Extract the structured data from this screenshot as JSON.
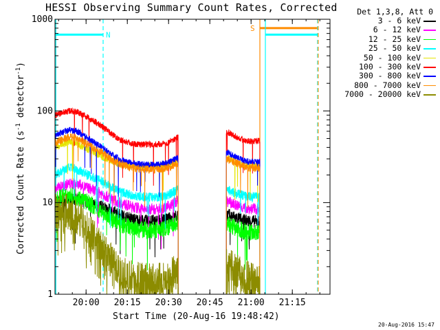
{
  "title": "HESSI Observing Summary Count Rates, Corrected",
  "footer_stamp": "20-Aug-2016 15:47",
  "chart_data": {
    "type": "line",
    "title": "HESSI Observing Summary Count Rates, Corrected",
    "xlabel": "Start Time (20-Aug-16 19:48:42)",
    "ylabel": {
      "main": "Corrected Count Rate (s",
      "sup1": "-1",
      "mid": " detector",
      "sup2": "-1",
      "end": ")"
    },
    "xlim": [
      "19:48:42",
      "21:28:42"
    ],
    "ylim": [
      1,
      1000
    ],
    "yscale": "log",
    "grid": false,
    "legend_placement": "right",
    "legend_title": "Det 1,3,8, Att 0",
    "x_ticks": [
      "20:00",
      "20:15",
      "20:30",
      "20:45",
      "21:00",
      "21:15"
    ],
    "x_tick_minutes": [
      11.3,
      26.3,
      41.3,
      56.3,
      71.3,
      86.3
    ],
    "y_ticks": [
      1,
      10,
      100,
      1000
    ],
    "y_tick_labels": [
      "1",
      "10",
      "100",
      "1000"
    ],
    "data_gap_minutes": [
      44.8,
      62.3
    ],
    "series": [
      {
        "name": "3 - 6 keV",
        "color": "#000000",
        "x": [
          0,
          5,
          8,
          12,
          17,
          21,
          24,
          28,
          32,
          37,
          41,
          44.8,
          62.3,
          66,
          70,
          74.5
        ],
        "y": [
          10,
          10.8,
          10.8,
          10,
          9,
          8,
          7.2,
          6.6,
          6.3,
          6.3,
          6.6,
          7.2,
          7.5,
          6.8,
          6.3,
          6.2
        ]
      },
      {
        "name": "6 - 12 keV",
        "color": "#ff00ff",
        "x": [
          0,
          5,
          8,
          12,
          17,
          21,
          24,
          28,
          32,
          37,
          41,
          44.8,
          62.3,
          66,
          70,
          74.5
        ],
        "y": [
          14,
          16,
          16,
          14.5,
          12.5,
          10.8,
          9.8,
          9,
          8.5,
          8.5,
          9,
          10.5,
          10.5,
          9.3,
          8.6,
          8.5
        ]
      },
      {
        "name": "12 - 25 keV",
        "color": "#00ff00",
        "x": [
          0,
          5,
          8,
          12,
          17,
          21,
          24,
          28,
          32,
          37,
          41,
          44.8,
          62.3,
          66,
          70,
          74.5
        ],
        "y": [
          11,
          12,
          11.5,
          10,
          8,
          6.5,
          5.8,
          5.3,
          5,
          5,
          5.3,
          6,
          5.8,
          5.2,
          4.8,
          4.7
        ]
      },
      {
        "name": "25 - 50 keV",
        "color": "#00ffff",
        "x": [
          0,
          5,
          8,
          12,
          17,
          21,
          24,
          28,
          32,
          37,
          41,
          44.8,
          62.3,
          66,
          70,
          74.5
        ],
        "y": [
          20,
          24,
          23,
          20,
          17,
          14.5,
          13,
          12,
          11.5,
          11.5,
          12,
          14,
          14,
          12.5,
          11.6,
          11.5
        ]
      },
      {
        "name": "50 - 100 keV",
        "color": "#e5e500",
        "x": [
          0,
          5,
          8,
          12,
          17,
          21,
          24,
          28,
          32,
          37,
          41,
          44.8,
          62.3,
          66,
          70,
          74.5
        ],
        "y": [
          40,
          46,
          44,
          38,
          32,
          28,
          26,
          25,
          25,
          25,
          26,
          29,
          31,
          27,
          25,
          25
        ]
      },
      {
        "name": "100 - 300 keV",
        "color": "#ff0000",
        "x": [
          0,
          5,
          8,
          12,
          17,
          21,
          24,
          28,
          32,
          37,
          41,
          44.8,
          62.3,
          66,
          70,
          74.5
        ],
        "y": [
          90,
          100,
          98,
          85,
          68,
          55,
          48,
          44,
          43,
          43,
          45,
          52,
          60,
          52,
          47,
          47
        ]
      },
      {
        "name": "300 - 800 keV",
        "color": "#0000ff",
        "x": [
          0,
          5,
          8,
          12,
          17,
          21,
          24,
          28,
          32,
          37,
          41,
          44.8,
          62.3,
          66,
          70,
          74.5
        ],
        "y": [
          54,
          62,
          60,
          50,
          40,
          33,
          29,
          27,
          26,
          26,
          27,
          31,
          36,
          31,
          28,
          28
        ]
      },
      {
        "name": "800 - 7000 keV",
        "color": "#ff8c00",
        "x": [
          0,
          5,
          8,
          12,
          17,
          21,
          24,
          28,
          32,
          37,
          41,
          44.8,
          62.3,
          66,
          70,
          74.5
        ],
        "y": [
          45,
          52,
          50,
          43,
          35,
          29,
          26,
          24,
          23,
          23,
          24,
          27,
          30,
          27,
          24,
          24
        ]
      },
      {
        "name": "7000 - 20000 keV",
        "color": "#8c8c00",
        "x": [
          0,
          5,
          8,
          12,
          17,
          21,
          24,
          28,
          32,
          37,
          41,
          44.8,
          62.3,
          66,
          70,
          74.5
        ],
        "y": [
          8,
          8,
          7,
          5,
          3.2,
          2.2,
          1.7,
          1.5,
          1.4,
          1.4,
          1.5,
          1.8,
          2.3,
          1.8,
          1.5,
          1.5
        ]
      }
    ],
    "flags": [
      {
        "label": "N",
        "color": "#00ffff",
        "level": 680,
        "x_start": 0,
        "x_end": 17.5
      },
      {
        "label": "S",
        "color": "#ff8c00",
        "level": 800,
        "x_start": 74.5,
        "x_end": 95.5
      }
    ],
    "night_bars": [
      {
        "color": "#00ffff",
        "level": 680,
        "x_start": 76.5,
        "x_end": 95.5
      }
    ],
    "vertical_lines": [
      {
        "x": 0.3,
        "color": "#00ffff",
        "style": "solid"
      },
      {
        "x": 17.5,
        "color": "#00ffff",
        "style": "dashed"
      },
      {
        "x": 74.5,
        "color": "#ff8c00",
        "style": "solid"
      },
      {
        "x": 76.5,
        "color": "#00ffff",
        "style": "solid"
      },
      {
        "x": 95.5,
        "color": "#00ffff",
        "style": "dashed"
      },
      {
        "x": 95.7,
        "color": "#ff8c00",
        "style": "dashed"
      }
    ]
  }
}
